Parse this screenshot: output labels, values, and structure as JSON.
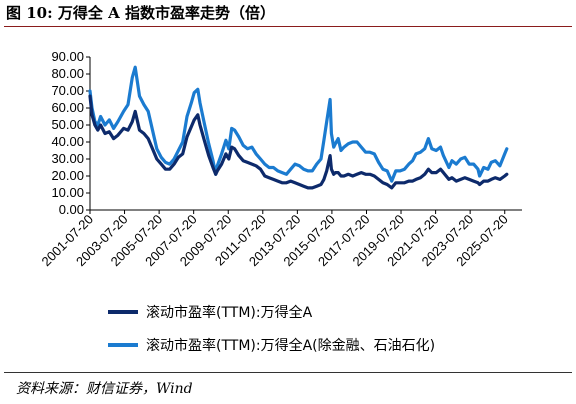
{
  "figure_title": "图 10:  万得全 A 指数市盈率走势（倍）",
  "source": "资料来源：财信证券，Wind",
  "colors": {
    "series1": "#0d2a6b",
    "series2": "#1b7bd0",
    "title_rule": "#8a1c1c"
  },
  "chart_data": {
    "type": "line",
    "title": "",
    "xlabel": "",
    "ylabel": "",
    "ylim": [
      0,
      90
    ],
    "y_ticks": [
      "0.00",
      "10.00",
      "20.00",
      "30.00",
      "40.00",
      "50.00",
      "60.00",
      "70.00",
      "80.00",
      "90.00"
    ],
    "x_range": [
      "2001-07-20",
      "2026-07-20"
    ],
    "x_ticks": [
      "2001-07-20",
      "2003-07-20",
      "2005-07-20",
      "2007-07-20",
      "2009-07-20",
      "2011-07-20",
      "2013-07-20",
      "2015-07-20",
      "2017-07-20",
      "2019-07-20",
      "2021-07-20",
      "2023-07-20",
      "2025-07-20"
    ],
    "legend_position": "bottom",
    "series": [
      {
        "name": "滚动市盈率(TTM):万得全A",
        "x": [
          "2001-07-20",
          "2001-09-01",
          "2001-11-01",
          "2002-01-01",
          "2002-03-01",
          "2002-06-01",
          "2002-09-01",
          "2002-12-01",
          "2003-03-01",
          "2003-07-01",
          "2003-10-01",
          "2004-01-01",
          "2004-03-01",
          "2004-06-01",
          "2004-09-01",
          "2004-12-01",
          "2005-03-01",
          "2005-06-01",
          "2005-09-01",
          "2005-12-01",
          "2006-03-01",
          "2006-06-01",
          "2006-09-01",
          "2006-12-01",
          "2007-03-01",
          "2007-06-01",
          "2007-08-01",
          "2007-10-15",
          "2007-12-01",
          "2008-03-01",
          "2008-06-01",
          "2008-09-01",
          "2008-10-28",
          "2008-12-01",
          "2009-03-01",
          "2009-06-01",
          "2009-08-01",
          "2009-10-01",
          "2009-12-01",
          "2010-03-01",
          "2010-06-01",
          "2010-09-01",
          "2010-12-01",
          "2011-03-01",
          "2011-06-01",
          "2011-09-01",
          "2011-12-01",
          "2012-03-01",
          "2012-06-01",
          "2012-09-01",
          "2012-12-01",
          "2013-03-01",
          "2013-06-01",
          "2013-09-01",
          "2013-12-01",
          "2014-03-01",
          "2014-06-01",
          "2014-09-01",
          "2014-12-01",
          "2015-02-01",
          "2015-04-01",
          "2015-06-12",
          "2015-07-10",
          "2015-08-26",
          "2015-10-01",
          "2015-12-01",
          "2016-01-28",
          "2016-04-01",
          "2016-07-01",
          "2016-10-01",
          "2017-01-01",
          "2017-04-01",
          "2017-07-01",
          "2017-10-01",
          "2018-01-01",
          "2018-04-01",
          "2018-07-01",
          "2018-10-01",
          "2019-01-03",
          "2019-04-01",
          "2019-07-01",
          "2019-10-01",
          "2020-01-01",
          "2020-03-20",
          "2020-06-01",
          "2020-09-01",
          "2020-12-01",
          "2021-02-18",
          "2021-05-01",
          "2021-08-01",
          "2021-11-01",
          "2022-01-01",
          "2022-04-26",
          "2022-07-01",
          "2022-10-01",
          "2023-01-01",
          "2023-04-01",
          "2023-07-01",
          "2023-10-01",
          "2024-01-01",
          "2024-02-05",
          "2024-05-01",
          "2024-08-01",
          "2024-10-08",
          "2025-01-01",
          "2025-04-08",
          "2025-07-20",
          "2025-09-01"
        ],
        "values": [
          67,
          56,
          50,
          47,
          50,
          45,
          46,
          42,
          44,
          48,
          47,
          52,
          58,
          47,
          45,
          42,
          36,
          30,
          27,
          24,
          24,
          27,
          31,
          33,
          43,
          49,
          53,
          56,
          50,
          41,
          32,
          25,
          21,
          23,
          27,
          33,
          30,
          37,
          36,
          32,
          29,
          28,
          27,
          26,
          24,
          20,
          19,
          18,
          17,
          16,
          16,
          17,
          16,
          15,
          14,
          13,
          13,
          14,
          15,
          18,
          23,
          32,
          24,
          21,
          22,
          22,
          20,
          20,
          21,
          20,
          21,
          22,
          21,
          21,
          20,
          18,
          16,
          15,
          13,
          16,
          16,
          16,
          17,
          17,
          18,
          19,
          21,
          24,
          22,
          22,
          24,
          22,
          18,
          19,
          17,
          18,
          19,
          18,
          17,
          16,
          15,
          17,
          17,
          18,
          19,
          18,
          20,
          21
        ]
      },
      {
        "name": "滚动市盈率(TTM):万得全A(除金融、石油石化)",
        "x": [
          "2001-07-20",
          "2001-09-01",
          "2001-11-01",
          "2002-01-01",
          "2002-03-01",
          "2002-06-01",
          "2002-09-01",
          "2002-12-01",
          "2003-03-01",
          "2003-07-01",
          "2003-10-01",
          "2004-01-01",
          "2004-03-01",
          "2004-06-01",
          "2004-09-01",
          "2004-12-01",
          "2005-03-01",
          "2005-06-01",
          "2005-09-01",
          "2005-12-01",
          "2006-03-01",
          "2006-06-01",
          "2006-09-01",
          "2006-12-01",
          "2007-03-01",
          "2007-06-01",
          "2007-08-01",
          "2007-10-15",
          "2007-12-01",
          "2008-03-01",
          "2008-06-01",
          "2008-09-01",
          "2008-10-28",
          "2008-12-01",
          "2009-03-01",
          "2009-06-01",
          "2009-08-01",
          "2009-10-01",
          "2009-12-01",
          "2010-03-01",
          "2010-06-01",
          "2010-09-01",
          "2010-12-01",
          "2011-03-01",
          "2011-06-01",
          "2011-09-01",
          "2011-12-01",
          "2012-03-01",
          "2012-06-01",
          "2012-09-01",
          "2012-12-01",
          "2013-03-01",
          "2013-06-01",
          "2013-09-01",
          "2013-12-01",
          "2014-03-01",
          "2014-06-01",
          "2014-09-01",
          "2014-12-01",
          "2015-02-01",
          "2015-04-01",
          "2015-06-12",
          "2015-07-10",
          "2015-08-26",
          "2015-10-01",
          "2015-12-01",
          "2016-01-28",
          "2016-04-01",
          "2016-07-01",
          "2016-10-01",
          "2017-01-01",
          "2017-04-01",
          "2017-07-01",
          "2017-10-01",
          "2018-01-01",
          "2018-04-01",
          "2018-07-01",
          "2018-10-01",
          "2019-01-03",
          "2019-04-01",
          "2019-07-01",
          "2019-10-01",
          "2020-01-01",
          "2020-03-20",
          "2020-06-01",
          "2020-09-01",
          "2020-12-01",
          "2021-02-18",
          "2021-05-01",
          "2021-08-01",
          "2021-11-01",
          "2022-01-01",
          "2022-04-26",
          "2022-07-01",
          "2022-10-01",
          "2023-01-01",
          "2023-04-01",
          "2023-07-01",
          "2023-10-01",
          "2024-01-01",
          "2024-02-05",
          "2024-05-01",
          "2024-08-01",
          "2024-10-08",
          "2025-01-01",
          "2025-04-08",
          "2025-07-20",
          "2025-09-01"
        ],
        "values": [
          70,
          60,
          52,
          50,
          55,
          50,
          53,
          48,
          52,
          58,
          62,
          78,
          84,
          67,
          62,
          58,
          47,
          36,
          31,
          28,
          27,
          30,
          35,
          40,
          55,
          63,
          69,
          71,
          63,
          51,
          39,
          29,
          21,
          26,
          33,
          41,
          36,
          48,
          47,
          43,
          38,
          36,
          37,
          33,
          30,
          27,
          25,
          25,
          23,
          22,
          21,
          24,
          27,
          26,
          24,
          23,
          23,
          27,
          30,
          41,
          52,
          65,
          45,
          37,
          39,
          42,
          35,
          37,
          39,
          40,
          40,
          37,
          34,
          34,
          33,
          28,
          24,
          23,
          17,
          23,
          23,
          24,
          27,
          29,
          33,
          34,
          36,
          42,
          36,
          35,
          37,
          32,
          25,
          29,
          27,
          30,
          31,
          27,
          27,
          24,
          20,
          25,
          24,
          28,
          29,
          26,
          33,
          36
        ]
      }
    ]
  }
}
